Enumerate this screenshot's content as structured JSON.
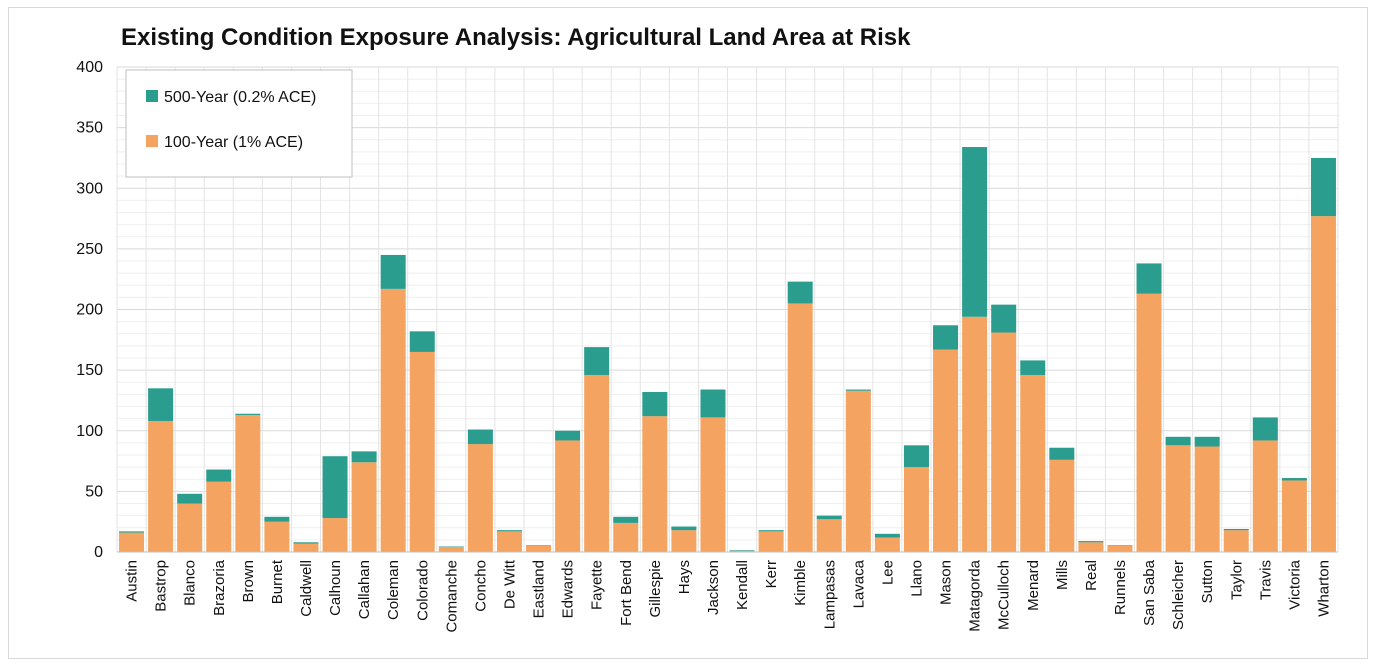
{
  "chart_data": {
    "type": "bar",
    "stacked": true,
    "title": "Existing Condition Exposure Analysis: Agricultural Land Area at Risk",
    "xlabel": "",
    "ylabel": "",
    "ylim": [
      0,
      400
    ],
    "yticks": [
      "0",
      "50",
      "100",
      "150",
      "200",
      "250",
      "300",
      "350",
      "400"
    ],
    "grid": true,
    "legend_position": "top-left",
    "categories": [
      "Austin",
      "Bastrop",
      "Blanco",
      "Brazoria",
      "Brown",
      "Burnet",
      "Caldwell",
      "Calhoun",
      "Callahan",
      "Coleman",
      "Colorado",
      "Comanche",
      "Concho",
      "De Witt",
      "Eastland",
      "Edwards",
      "Fayette",
      "Fort Bend",
      "Gillespie",
      "Hays",
      "Jackson",
      "Kendall",
      "Kerr",
      "Kimble",
      "Lampasas",
      "Lavaca",
      "Lee",
      "Llano",
      "Mason",
      "Matagorda",
      "McCulloch",
      "Menard",
      "Mills",
      "Real",
      "Runnels",
      "San Saba",
      "Schleicher",
      "Sutton",
      "Taylor",
      "Travis",
      "Victoria",
      "Wharton"
    ],
    "series": [
      {
        "name": "100-Year (1% ACE)",
        "color": "#F4A460",
        "values": [
          16,
          108,
          40,
          58,
          113,
          25,
          7,
          28,
          74,
          217,
          165,
          4,
          89,
          17,
          5,
          92,
          146,
          24,
          112,
          18,
          111,
          1,
          17,
          205,
          27,
          133,
          12,
          70,
          167,
          194,
          181,
          146,
          76,
          8,
          5,
          213,
          88,
          87,
          18,
          92,
          59,
          277
        ]
      },
      {
        "name": "500-Year (0.2% ACE)",
        "color": "#2A9D8F",
        "values": [
          1,
          27,
          8,
          10,
          1,
          4,
          1,
          51,
          9,
          28,
          17,
          0.5,
          12,
          1,
          0.5,
          8,
          23,
          5,
          20,
          3,
          23,
          0.5,
          1,
          18,
          3,
          1,
          3,
          18,
          20,
          140,
          23,
          12,
          10,
          1,
          0.5,
          25,
          7,
          8,
          1,
          19,
          2,
          48
        ]
      }
    ]
  }
}
